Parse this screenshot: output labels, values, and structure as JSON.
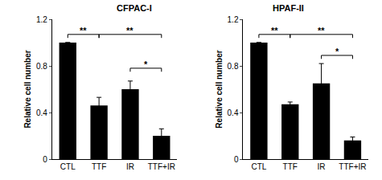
{
  "chart_data": [
    {
      "type": "bar",
      "title": "CFPAC-I",
      "y_label": "Relative cell number",
      "categories": [
        "CTL",
        "TTF",
        "IR",
        "TTF+IR"
      ],
      "values": [
        1.0,
        0.46,
        0.6,
        0.2
      ],
      "errors": [
        0,
        0.07,
        0.07,
        0.06
      ],
      "color": "#000000",
      "ylim": [
        0,
        1.2
      ],
      "yticks": [
        0,
        0.4,
        0.8,
        1.2
      ],
      "grid": false,
      "significance": [
        {
          "from": "CTL",
          "to": "TTF",
          "y": 1.07,
          "label": "**"
        },
        {
          "from": "TTF",
          "to": "TTF+IR",
          "y": 1.07,
          "label": "**"
        },
        {
          "from": "IR",
          "to": "TTF+IR",
          "y": 0.78,
          "label": "*"
        }
      ]
    },
    {
      "type": "bar",
      "title": "HPAF-II",
      "y_label": "Relative cell number",
      "categories": [
        "CTL",
        "TTF",
        "IR",
        "TTF+IR"
      ],
      "values": [
        1.0,
        0.47,
        0.65,
        0.16
      ],
      "errors": [
        0,
        0.02,
        0.17,
        0.03
      ],
      "color": "#000000",
      "ylim": [
        0,
        1.2
      ],
      "yticks": [
        0,
        0.4,
        0.8,
        1.2
      ],
      "grid": false,
      "significance": [
        {
          "from": "CTL",
          "to": "TTF",
          "y": 1.07,
          "label": "**"
        },
        {
          "from": "TTF",
          "to": "TTF+IR",
          "y": 1.07,
          "label": "**"
        },
        {
          "from": "IR",
          "to": "TTF+IR",
          "y": 0.89,
          "label": "*"
        }
      ]
    }
  ]
}
